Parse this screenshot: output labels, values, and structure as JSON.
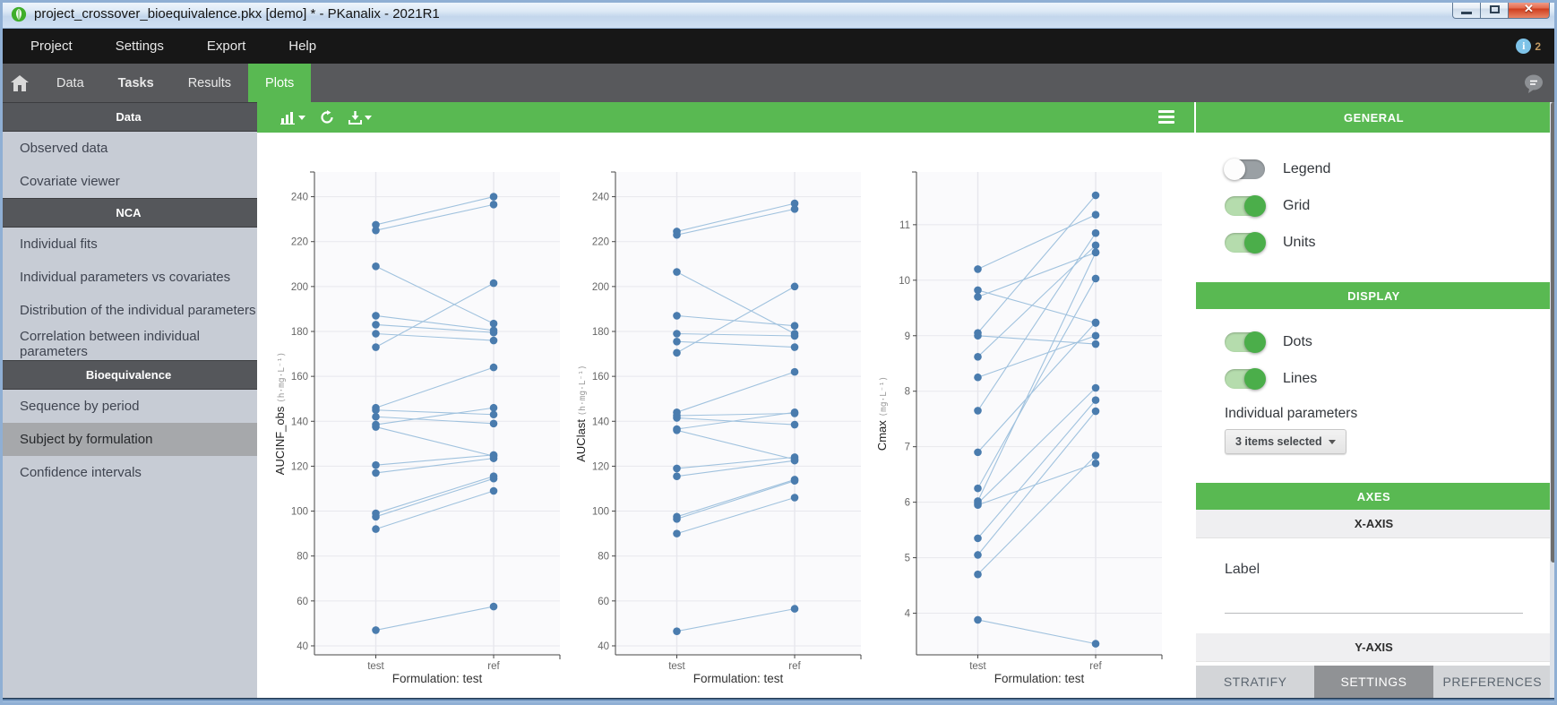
{
  "window": {
    "title": "project_crossover_bioequivalence.pkx [demo] * - PKanalix - 2021R1",
    "controls": [
      "minimize",
      "maximize",
      "close"
    ]
  },
  "menu": {
    "items": [
      "Project",
      "Settings",
      "Export",
      "Help"
    ],
    "info_badge": "2"
  },
  "tabs": {
    "items": [
      {
        "label": "Data",
        "bold": false,
        "active": false
      },
      {
        "label": "Tasks",
        "bold": true,
        "active": false
      },
      {
        "label": "Results",
        "bold": false,
        "active": false
      },
      {
        "label": "Plots",
        "bold": false,
        "active": true
      }
    ]
  },
  "sidebar": {
    "sections": [
      {
        "header": "Data",
        "items": [
          {
            "label": "Observed data"
          },
          {
            "label": "Covariate viewer"
          }
        ]
      },
      {
        "header": "NCA",
        "items": [
          {
            "label": "Individual fits"
          },
          {
            "label": "Individual parameters vs covariates"
          },
          {
            "label": "Distribution of the individual parameters"
          },
          {
            "label": "Correlation between individual parameters"
          }
        ]
      },
      {
        "header": "Bioequivalence",
        "items": [
          {
            "label": "Sequence by period"
          },
          {
            "label": "Subject by formulation",
            "selected": true
          },
          {
            "label": "Confidence intervals"
          }
        ]
      }
    ]
  },
  "plot_toolbar": {
    "icons": [
      "chart-type",
      "refresh",
      "export-image",
      "layout-menu"
    ]
  },
  "panel": {
    "general": {
      "header": "GENERAL",
      "toggles": [
        {
          "name": "legend",
          "label": "Legend",
          "on": false
        },
        {
          "name": "grid",
          "label": "Grid",
          "on": true
        },
        {
          "name": "units",
          "label": "Units",
          "on": true
        }
      ]
    },
    "display": {
      "header": "DISPLAY",
      "toggles": [
        {
          "name": "dots",
          "label": "Dots",
          "on": true
        },
        {
          "name": "lines",
          "label": "Lines",
          "on": true
        }
      ],
      "individual_parameters_label": "Individual parameters",
      "selected_summary": "3 items selected"
    },
    "axes": {
      "header": "AXES",
      "x_axis_header": "X-AXIS",
      "label_field": "Label",
      "label_value": "",
      "y_axis_header": "Y-AXIS"
    },
    "footer_tabs": [
      {
        "label": "STRATIFY",
        "active": false
      },
      {
        "label": "SETTINGS",
        "active": true
      },
      {
        "label": "PREFERENCES",
        "active": false
      }
    ]
  },
  "chart_data": [
    {
      "type": "line",
      "categories": [
        "test",
        "ref"
      ],
      "xlabel": "Formulation: test",
      "ylabel": "AUCINF_obs",
      "unit": "(h·mg·L⁻¹)",
      "yticks": [
        40,
        60,
        80,
        100,
        120,
        140,
        160,
        180,
        200,
        220,
        240
      ],
      "ylim": [
        36,
        251
      ],
      "grid": true,
      "legend": false,
      "pairs": [
        [
          227.5,
          240
        ],
        [
          225,
          236.5
        ],
        [
          209,
          183.5
        ],
        [
          187,
          180.5
        ],
        [
          183,
          179.5
        ],
        [
          179,
          176
        ],
        [
          173,
          201.5
        ],
        [
          146,
          164
        ],
        [
          145,
          143
        ],
        [
          142,
          139
        ],
        [
          138.5,
          146
        ],
        [
          137.5,
          124.5
        ],
        [
          120.5,
          125
        ],
        [
          117,
          123.5
        ],
        [
          99,
          115.5
        ],
        [
          97.5,
          114.5
        ],
        [
          92,
          109
        ],
        [
          47,
          57.5
        ]
      ]
    },
    {
      "type": "line",
      "categories": [
        "test",
        "ref"
      ],
      "xlabel": "Formulation: test",
      "ylabel": "AUClast",
      "unit": "(h·mg·L⁻¹)",
      "yticks": [
        40,
        60,
        80,
        100,
        120,
        140,
        160,
        180,
        200,
        220,
        240
      ],
      "ylim": [
        36,
        251
      ],
      "grid": true,
      "legend": false,
      "pairs": [
        [
          224.5,
          237
        ],
        [
          223,
          234.5
        ],
        [
          206.5,
          179
        ],
        [
          187,
          182.5
        ],
        [
          179,
          178
        ],
        [
          175.5,
          173
        ],
        [
          170.5,
          200
        ],
        [
          144,
          162
        ],
        [
          142.5,
          143.5
        ],
        [
          141.5,
          138.5
        ],
        [
          136.5,
          144
        ],
        [
          136,
          123
        ],
        [
          119,
          124
        ],
        [
          115.5,
          122.5
        ],
        [
          97.5,
          114
        ],
        [
          96.5,
          113.5
        ],
        [
          90,
          106
        ],
        [
          46.5,
          56.5
        ]
      ]
    },
    {
      "type": "line",
      "categories": [
        "test",
        "ref"
      ],
      "xlabel": "Formulation: test",
      "ylabel": "Cmax",
      "unit": "(mg·L⁻¹)",
      "yticks": [
        4,
        5,
        6,
        7,
        8,
        9,
        10,
        11
      ],
      "ylim": [
        3.25,
        11.95
      ],
      "grid": true,
      "legend": false,
      "pairs": [
        [
          10.2,
          11.18
        ],
        [
          9.82,
          9.23
        ],
        [
          9.7,
          10.5
        ],
        [
          9.05,
          11.53
        ],
        [
          9.0,
          8.85
        ],
        [
          8.62,
          10.63
        ],
        [
          8.25,
          9.0
        ],
        [
          7.65,
          10.85
        ],
        [
          6.9,
          9.24
        ],
        [
          6.25,
          10.03
        ],
        [
          6.02,
          10.5
        ],
        [
          5.98,
          8.06
        ],
        [
          5.95,
          6.7
        ],
        [
          5.35,
          7.84
        ],
        [
          5.05,
          7.64
        ],
        [
          4.7,
          6.84
        ],
        [
          3.88,
          3.45
        ]
      ]
    }
  ],
  "colors": {
    "accent_green": "#59b952",
    "toggle_on_knob": "#4bae4a",
    "series_dot": "#4a7cae",
    "series_line": "#a0c2de",
    "plot_bg": "#fafafc",
    "grid": "#e7e7ed",
    "axis": "#454545",
    "tick": "#666666",
    "sidebar_bg": "#c7ccd5",
    "sidebar_header_bg": "#55575b",
    "close_red": "#cf3f1f"
  }
}
